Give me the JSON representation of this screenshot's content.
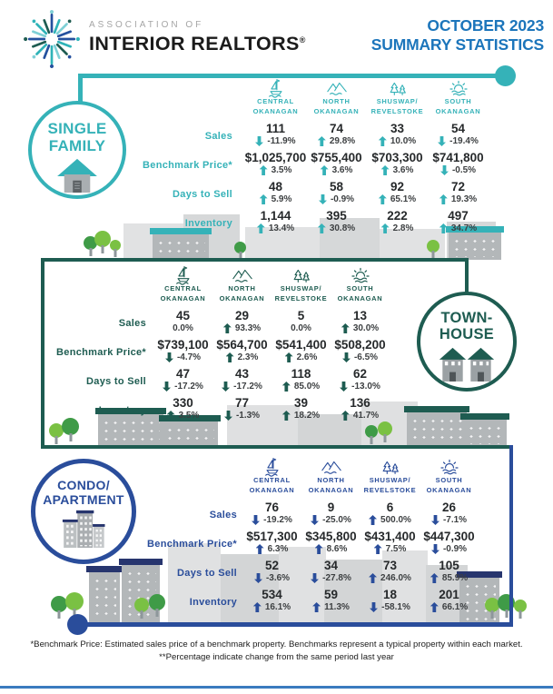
{
  "header": {
    "brand_top": "ASSOCIATION OF",
    "brand_main": "INTERIOR REALTORS",
    "brand_reg": "®",
    "title_line1": "OCTOBER 2023",
    "title_line2": "SUMMARY STATISTICS"
  },
  "regions": [
    {
      "line1": "CENTRAL",
      "line2": "OKANAGAN",
      "icon": "sailboat-icon"
    },
    {
      "line1": "NORTH",
      "line2": "OKANAGAN",
      "icon": "mountains-icon"
    },
    {
      "line1": "SHUSWAP/",
      "line2": "REVELSTOKE",
      "icon": "pine-trees-icon"
    },
    {
      "line1": "SOUTH",
      "line2": "OKANAGAN",
      "icon": "sun-waves-icon"
    }
  ],
  "sections": [
    {
      "id": "single-family",
      "label_lines": [
        "SINGLE",
        "FAMILY"
      ],
      "accent": "#35b2b8",
      "icon": "house-icon",
      "rows": [
        {
          "label": "Sales",
          "cells": [
            {
              "value": "111",
              "change": "-11.9%",
              "dir": "down"
            },
            {
              "value": "74",
              "change": "29.8%",
              "dir": "up"
            },
            {
              "value": "33",
              "change": "10.0%",
              "dir": "up"
            },
            {
              "value": "54",
              "change": "-19.4%",
              "dir": "down"
            }
          ]
        },
        {
          "label": "Benchmark Price*",
          "cells": [
            {
              "value": "$1,025,700",
              "change": "3.5%",
              "dir": "up"
            },
            {
              "value": "$755,400",
              "change": "3.6%",
              "dir": "up"
            },
            {
              "value": "$703,300",
              "change": "3.6%",
              "dir": "up"
            },
            {
              "value": "$741,800",
              "change": "-0.5%",
              "dir": "down"
            }
          ]
        },
        {
          "label": "Days to Sell",
          "cells": [
            {
              "value": "48",
              "change": "5.9%",
              "dir": "up"
            },
            {
              "value": "58",
              "change": "-0.9%",
              "dir": "down"
            },
            {
              "value": "92",
              "change": "65.1%",
              "dir": "up"
            },
            {
              "value": "72",
              "change": "19.3%",
              "dir": "up"
            }
          ]
        },
        {
          "label": "Inventory",
          "cells": [
            {
              "value": "1,144",
              "change": "13.4%",
              "dir": "up"
            },
            {
              "value": "395",
              "change": "30.8%",
              "dir": "up"
            },
            {
              "value": "222",
              "change": "2.8%",
              "dir": "up"
            },
            {
              "value": "497",
              "change": "34.7%",
              "dir": "up"
            }
          ]
        }
      ]
    },
    {
      "id": "townhouse",
      "label_lines": [
        "TOWN-",
        "HOUSE"
      ],
      "accent": "#1e5c51",
      "icon": "townhouse-icon",
      "rows": [
        {
          "label": "Sales",
          "cells": [
            {
              "value": "45",
              "change": "0.0%",
              "dir": "none"
            },
            {
              "value": "29",
              "change": "93.3%",
              "dir": "up"
            },
            {
              "value": "5",
              "change": "0.0%",
              "dir": "none"
            },
            {
              "value": "13",
              "change": "30.0%",
              "dir": "up"
            }
          ]
        },
        {
          "label": "Benchmark Price*",
          "cells": [
            {
              "value": "$739,100",
              "change": "-4.7%",
              "dir": "down"
            },
            {
              "value": "$564,700",
              "change": "2.3%",
              "dir": "up"
            },
            {
              "value": "$541,400",
              "change": "2.6%",
              "dir": "up"
            },
            {
              "value": "$508,200",
              "change": "-6.5%",
              "dir": "down"
            }
          ]
        },
        {
          "label": "Days to Sell",
          "cells": [
            {
              "value": "47",
              "change": "-17.2%",
              "dir": "down"
            },
            {
              "value": "43",
              "change": "-17.2%",
              "dir": "down"
            },
            {
              "value": "118",
              "change": "85.0%",
              "dir": "up"
            },
            {
              "value": "62",
              "change": "-13.0%",
              "dir": "down"
            }
          ]
        },
        {
          "label": "Inventory",
          "cells": [
            {
              "value": "330",
              "change": "3.5%",
              "dir": "up"
            },
            {
              "value": "77",
              "change": "-1.3%",
              "dir": "down"
            },
            {
              "value": "39",
              "change": "18.2%",
              "dir": "up"
            },
            {
              "value": "136",
              "change": "41.7%",
              "dir": "up"
            }
          ]
        }
      ]
    },
    {
      "id": "condo-apartment",
      "label_lines": [
        "CONDO/",
        "APARTMENT"
      ],
      "accent": "#2a4d9b",
      "icon": "condo-icon",
      "rows": [
        {
          "label": "Sales",
          "cells": [
            {
              "value": "76",
              "change": "-19.2%",
              "dir": "down"
            },
            {
              "value": "9",
              "change": "-25.0%",
              "dir": "down"
            },
            {
              "value": "6",
              "change": "500.0%",
              "dir": "up"
            },
            {
              "value": "26",
              "change": "-7.1%",
              "dir": "down"
            }
          ]
        },
        {
          "label": "Benchmark Price*",
          "cells": [
            {
              "value": "$517,300",
              "change": "6.3%",
              "dir": "up"
            },
            {
              "value": "$345,800",
              "change": "8.6%",
              "dir": "up"
            },
            {
              "value": "$431,400",
              "change": "7.5%",
              "dir": "up"
            },
            {
              "value": "$447,300",
              "change": "-0.9%",
              "dir": "down"
            }
          ]
        },
        {
          "label": "Days to Sell",
          "cells": [
            {
              "value": "52",
              "change": "-3.6%",
              "dir": "down"
            },
            {
              "value": "34",
              "change": "-27.8%",
              "dir": "down"
            },
            {
              "value": "73",
              "change": "246.0%",
              "dir": "up"
            },
            {
              "value": "105",
              "change": "85.9%",
              "dir": "up"
            }
          ]
        },
        {
          "label": "Inventory",
          "cells": [
            {
              "value": "534",
              "change": "16.1%",
              "dir": "up"
            },
            {
              "value": "59",
              "change": "11.3%",
              "dir": "up"
            },
            {
              "value": "18",
              "change": "-58.1%",
              "dir": "down"
            },
            {
              "value": "201",
              "change": "66.1%",
              "dir": "up"
            }
          ]
        }
      ]
    }
  ],
  "footnotes": [
    "*Benchmark Price: Estimated sales price of a benchmark property. Benchmarks represent a typical property within each market.",
    "**Percentage indicate change from the same period last year"
  ],
  "colors": {
    "teal": "#35b2b8",
    "dark_green": "#1e5c51",
    "navy": "#2a4d9b",
    "title_blue": "#1c75bb"
  }
}
